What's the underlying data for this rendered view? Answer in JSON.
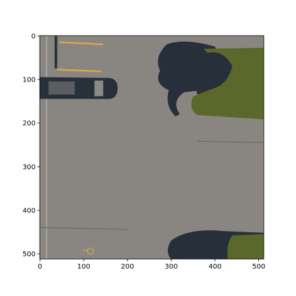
{
  "chart_data": {
    "type": "image",
    "xlim": [
      -0.5,
      511.5
    ],
    "ylim": [
      511.5,
      -0.5
    ],
    "xticks": [
      0,
      100,
      200,
      300,
      400,
      500
    ],
    "yticks": [
      0,
      100,
      200,
      300,
      400,
      500
    ]
  }
}
